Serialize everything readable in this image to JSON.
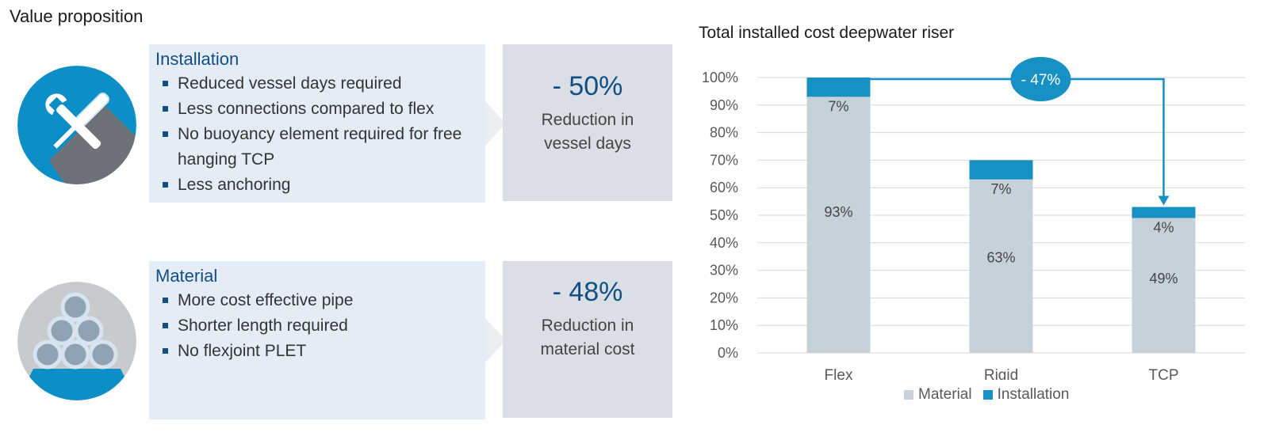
{
  "page": {
    "title": "Value proposition"
  },
  "installation": {
    "title": "Installation",
    "bullets": [
      "Reduced vessel days required",
      "Less connections compared to flex",
      "No buoyancy element required for free hanging TCP",
      "Less anchoring"
    ],
    "metric_value": "- 50%",
    "metric_label_line1": "Reduction in",
    "metric_label_line2": "vessel days",
    "icon": "wrench-screwdriver-icon"
  },
  "material": {
    "title": "Material",
    "bullets": [
      "More cost effective pipe",
      "Shorter length required",
      "No flexjoint PLET"
    ],
    "metric_value": "- 48%",
    "metric_label_line1": "Reduction in",
    "metric_label_line2": "material cost",
    "icon": "pipe-stack-icon"
  },
  "colors": {
    "material": "#c5d2d9",
    "installation": "#1791c4",
    "accent_dark": "#124e84",
    "panel_bg": "#e4edf6",
    "metric_bg": "#d9dfe5",
    "icon_blue": "#0c8fc7"
  },
  "chart_data": {
    "type": "bar",
    "stacked": true,
    "title": "Total installed cost deepwater riser",
    "categories": [
      "Flex",
      "Rigid",
      "TCP"
    ],
    "series": [
      {
        "name": "Material",
        "values": [
          93,
          63,
          49
        ],
        "labels": [
          "93%",
          "63%",
          "49%"
        ]
      },
      {
        "name": "Installation",
        "values": [
          7,
          7,
          4
        ],
        "labels": [
          "7%",
          "7%",
          "4%"
        ]
      }
    ],
    "ylim": [
      0,
      100
    ],
    "yticks": [
      "0%",
      "10%",
      "20%",
      "30%",
      "40%",
      "50%",
      "60%",
      "70%",
      "80%",
      "90%",
      "100%"
    ],
    "legend_position": "bottom",
    "grid": true,
    "annotation": {
      "text": "- 47%",
      "from": "Flex",
      "to": "TCP"
    }
  }
}
